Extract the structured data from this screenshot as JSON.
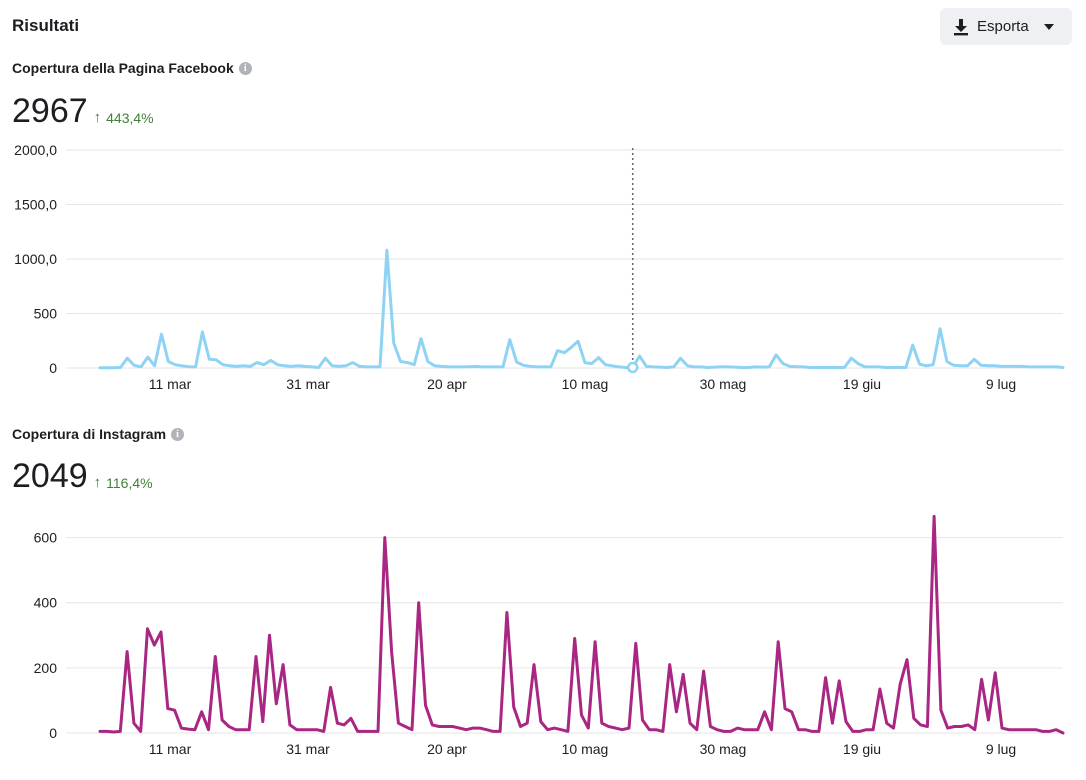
{
  "header": {
    "title": "Risultati",
    "export_label": "Esporta",
    "export_icon": "download-icon",
    "dropdown_icon": "caret-down-icon"
  },
  "facebook": {
    "title": "Copertura della Pagina Facebook",
    "value": "2967",
    "change": "443,4%"
  },
  "instagram": {
    "title": "Copertura di Instagram",
    "value": "2049",
    "change": "116,4%"
  },
  "chart_data": [
    {
      "type": "line",
      "title": "Copertura della Pagina Facebook",
      "color": "#8fd3f4",
      "x_tick_labels": [
        "11 mar",
        "31 mar",
        "20 apr",
        "10 mag",
        "30 mag",
        "19 giu",
        "9 lug"
      ],
      "y_tick_labels": [
        "0",
        "500",
        "1000,0",
        "1500,0",
        "2000,0"
      ],
      "y_ticks": [
        0,
        500,
        1000,
        1500,
        2000
      ],
      "ylim": [
        0,
        2000
      ],
      "grid": true,
      "hover_marker_index": 78,
      "values": [
        2,
        2,
        2,
        5,
        90,
        25,
        10,
        100,
        20,
        310,
        60,
        30,
        20,
        12,
        10,
        330,
        80,
        75,
        30,
        20,
        15,
        20,
        15,
        50,
        30,
        70,
        30,
        20,
        15,
        20,
        15,
        10,
        5,
        90,
        20,
        15,
        20,
        50,
        15,
        10,
        10,
        10,
        1080,
        230,
        60,
        50,
        30,
        270,
        60,
        20,
        15,
        10,
        10,
        10,
        12,
        15,
        10,
        10,
        10,
        10,
        260,
        55,
        25,
        15,
        10,
        10,
        10,
        160,
        140,
        190,
        245,
        50,
        40,
        95,
        30,
        20,
        10,
        5,
        5,
        110,
        15,
        10,
        8,
        5,
        10,
        90,
        20,
        10,
        10,
        5,
        8,
        12,
        10,
        8,
        5,
        5,
        10,
        8,
        10,
        120,
        40,
        15,
        12,
        10,
        5,
        5,
        5,
        5,
        5,
        5,
        90,
        40,
        10,
        10,
        10,
        5,
        5,
        5,
        5,
        210,
        35,
        20,
        30,
        360,
        60,
        25,
        20,
        20,
        80,
        25,
        20,
        20,
        15,
        15,
        15,
        15,
        10,
        10,
        10,
        10,
        10,
        5
      ]
    },
    {
      "type": "line",
      "title": "Copertura di Instagram",
      "color": "#a92682",
      "x_tick_labels": [
        "11 mar",
        "31 mar",
        "20 apr",
        "10 mag",
        "30 mag",
        "19 giu",
        "9 lug"
      ],
      "y_tick_labels": [
        "0",
        "200",
        "400",
        "600"
      ],
      "y_ticks": [
        0,
        200,
        400,
        600
      ],
      "ylim": [
        0,
        700
      ],
      "grid": true,
      "values": [
        5,
        5,
        3,
        5,
        250,
        30,
        5,
        320,
        270,
        310,
        75,
        70,
        15,
        12,
        10,
        65,
        10,
        235,
        40,
        20,
        10,
        10,
        10,
        235,
        35,
        300,
        90,
        210,
        25,
        10,
        10,
        10,
        10,
        5,
        140,
        30,
        25,
        45,
        5,
        5,
        5,
        5,
        600,
        250,
        30,
        20,
        10,
        400,
        85,
        25,
        20,
        20,
        20,
        15,
        10,
        15,
        15,
        10,
        5,
        5,
        370,
        80,
        20,
        30,
        210,
        35,
        10,
        15,
        10,
        5,
        290,
        55,
        15,
        280,
        30,
        20,
        15,
        10,
        15,
        275,
        40,
        10,
        10,
        5,
        210,
        65,
        180,
        30,
        10,
        190,
        20,
        10,
        5,
        5,
        15,
        10,
        10,
        10,
        65,
        10,
        280,
        75,
        65,
        10,
        10,
        5,
        5,
        170,
        30,
        160,
        35,
        5,
        5,
        10,
        10,
        135,
        30,
        15,
        150,
        225,
        45,
        25,
        20,
        665,
        70,
        15,
        20,
        20,
        25,
        10,
        165,
        40,
        185,
        15,
        10,
        10,
        10,
        10,
        10,
        5,
        5,
        10,
        0
      ]
    }
  ]
}
